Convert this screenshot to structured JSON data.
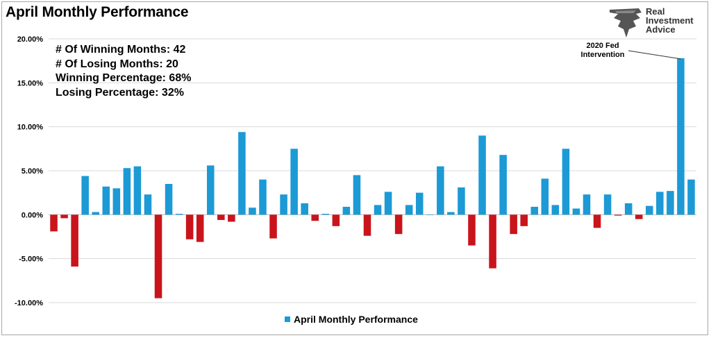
{
  "title": "April Monthly Performance",
  "logo": {
    "line1": "Real",
    "line2": "Investment",
    "line3": "Advice",
    "icon": "eagle-logo-icon"
  },
  "stats": [
    "# Of Winning Months: 42",
    "# Of Losing Months: 20",
    "Winning Percentage: 68%",
    "Losing Percentage: 32%"
  ],
  "annotation": {
    "line1": "2020 Fed",
    "line2": "Intervention",
    "target_index": 60
  },
  "legend": {
    "label": "April Monthly Performance"
  },
  "colors": {
    "positive": "#1b9ad6",
    "negative": "#c9141c",
    "grid": "#d9d9d9"
  },
  "chart_data": {
    "type": "bar",
    "title": "April Monthly Performance",
    "series": [
      {
        "name": "April Monthly Performance"
      }
    ],
    "ylim": [
      -10,
      20
    ],
    "yticks": [
      "-10.00%",
      "-5.00%",
      "0.00%",
      "5.00%",
      "10.00%",
      "15.00%",
      "20.00%"
    ],
    "ytick_values": [
      -10,
      -5,
      0,
      5,
      10,
      15,
      20
    ],
    "grid": true,
    "legend_position": "bottom",
    "values": [
      -1.9,
      -0.4,
      -5.9,
      4.4,
      0.3,
      3.2,
      3.0,
      5.3,
      5.5,
      2.3,
      -9.5,
      3.5,
      0.1,
      -2.8,
      -3.1,
      5.6,
      -0.6,
      -0.8,
      9.4,
      0.8,
      4.0,
      -2.7,
      2.3,
      7.5,
      1.3,
      -0.7,
      0.1,
      -1.3,
      0.9,
      4.5,
      -2.4,
      1.1,
      2.6,
      -2.2,
      1.1,
      2.5,
      0.0,
      5.5,
      0.3,
      3.1,
      -3.5,
      9.0,
      -6.1,
      6.8,
      -2.2,
      -1.3,
      0.9,
      4.1,
      1.1,
      7.5,
      0.7,
      2.3,
      -1.5,
      2.3,
      -0.1,
      1.3,
      -0.5,
      1.0,
      2.6,
      2.7,
      17.8,
      4.0
    ]
  }
}
